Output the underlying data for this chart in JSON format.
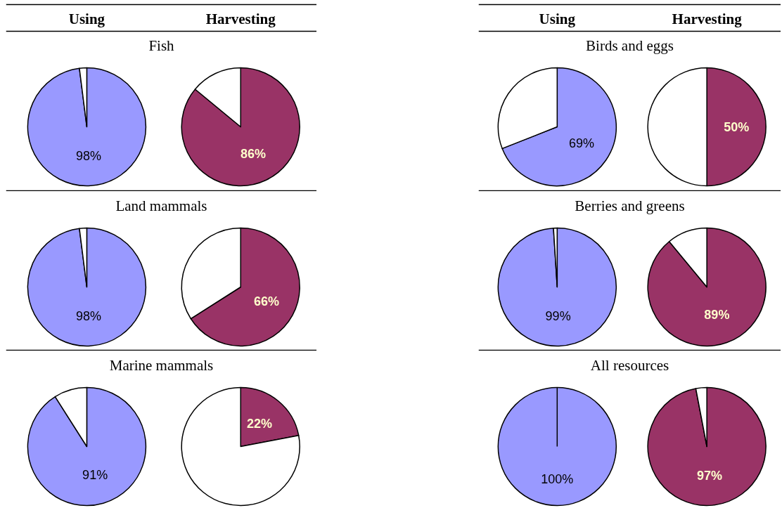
{
  "chart_data": [
    {
      "type": "pie",
      "title": "Fish",
      "categories": [
        null,
        null
      ],
      "series": [
        {
          "name": "Using",
          "colors": [
            "#9999ff",
            "#ffffff"
          ],
          "values": [
            98,
            2
          ],
          "value_labels": [
            "98%",
            null
          ]
        },
        {
          "name": "Harvesting",
          "colors": [
            "#993366",
            "#ffffff"
          ],
          "values": [
            86,
            14
          ],
          "value_labels": [
            "86%",
            null
          ]
        }
      ]
    },
    {
      "type": "pie",
      "title": "Birds and eggs",
      "categories": [
        null,
        null
      ],
      "series": [
        {
          "name": "Using",
          "colors": [
            "#9999ff",
            "#ffffff"
          ],
          "values": [
            69,
            31
          ],
          "value_labels": [
            "69%",
            null
          ]
        },
        {
          "name": "Harvesting",
          "colors": [
            "#993366",
            "#ffffff"
          ],
          "values": [
            50,
            50
          ],
          "value_labels": [
            "50%",
            null
          ]
        }
      ]
    },
    {
      "type": "pie",
      "title": "Land mammals",
      "categories": [
        null,
        null
      ],
      "series": [
        {
          "colors": [
            "#9999ff",
            "#ffffff"
          ],
          "values": [
            98,
            2
          ],
          "value_labels": [
            "98%",
            null
          ]
        },
        {
          "colors": [
            "#993366",
            "#ffffff"
          ],
          "values": [
            66,
            34
          ],
          "value_labels": [
            "66%",
            null
          ]
        }
      ]
    },
    {
      "type": "pie",
      "title": "Berries and greens",
      "categories": [
        null,
        null
      ],
      "series": [
        {
          "colors": [
            "#9999ff",
            "#ffffff"
          ],
          "values": [
            99,
            1
          ],
          "value_labels": [
            "99%",
            null
          ]
        },
        {
          "colors": [
            "#993366",
            "#ffffff"
          ],
          "values": [
            89,
            11
          ],
          "value_labels": [
            "89%",
            null
          ]
        }
      ]
    },
    {
      "type": "pie",
      "title": "Marine mammals",
      "categories": [
        null,
        null
      ],
      "series": [
        {
          "colors": [
            "#9999ff",
            "#ffffff"
          ],
          "values": [
            91,
            9
          ],
          "value_labels": [
            "91%",
            null
          ]
        },
        {
          "colors": [
            "#993366",
            "#ffffff"
          ],
          "values": [
            22,
            78
          ],
          "value_labels": [
            "22%",
            null
          ]
        }
      ]
    },
    {
      "type": "pie",
      "title": "All resources",
      "categories": [
        null,
        null
      ],
      "series": [
        {
          "colors": [
            "#9999ff",
            "#ffffff"
          ],
          "values": [
            100,
            0
          ],
          "value_labels": [
            "100%",
            null
          ]
        },
        {
          "colors": [
            "#993366",
            "#ffffff"
          ],
          "values": [
            97,
            3
          ],
          "value_labels": [
            "97%",
            null
          ]
        }
      ]
    }
  ]
}
